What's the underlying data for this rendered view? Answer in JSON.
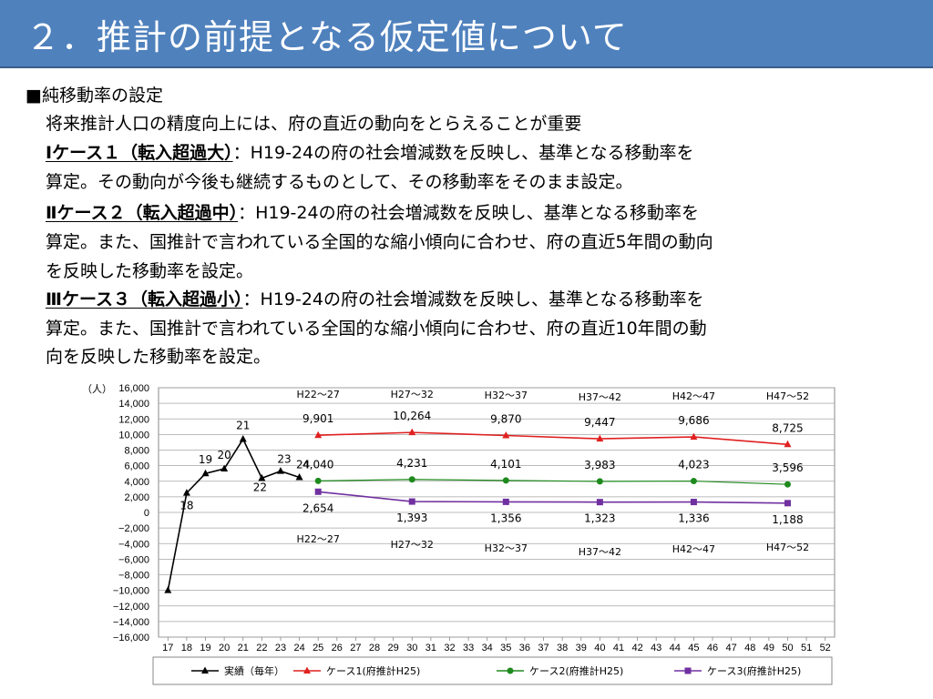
{
  "slide": {
    "title": "２．推計の前提となる仮定値について",
    "heading": "■純移動率の設定",
    "intro": "将来推計人口の精度向上には、府の直近の動向をとらえることが重要",
    "cases": [
      {
        "label": "Ⅰケース１（転入超過大）",
        "lines": [
          "：H19-24の府の社会増減数を反映し、基準となる移動率を",
          "算定。その動向が今後も継続するものとして、その移動率をそのまま設定。"
        ]
      },
      {
        "label": "Ⅱケース２（転入超過中）",
        "lines": [
          "：H19-24の府の社会増減数を反映し、基準となる移動率を",
          "算定。また、国推計で言われている全国的な縮小傾向に合わせ、府の直近5年間の動向",
          "を反映した移動率を設定。"
        ]
      },
      {
        "label": "Ⅲケース３（転入超過小）",
        "lines": [
          "：H19-24の府の社会増減数を反映し、基準となる移動率を",
          "算定。また、国推計で言われている全国的な縮小傾向に合わせ、府の直近10年間の動",
          "向を反映した移動率を設定。"
        ]
      }
    ]
  },
  "chart_data": {
    "type": "line",
    "y_unit_label": "（人）",
    "ylim": [
      -16000,
      16000
    ],
    "y_ticks": [
      16000,
      14000,
      12000,
      10000,
      8000,
      6000,
      4000,
      2000,
      0,
      -2000,
      -4000,
      -6000,
      -8000,
      -10000,
      -12000,
      -14000,
      -16000
    ],
    "y_tick_labels": [
      "16,000",
      "14,000",
      "12,000",
      "10,000",
      "8,000",
      "6,000",
      "4,000",
      "2,000",
      "0",
      "−2,000",
      "−4,000",
      "−6,000",
      "−8,000",
      "−10,000",
      "−12,000",
      "−14,000",
      "−16,000"
    ],
    "x_ticks": [
      17,
      18,
      19,
      20,
      21,
      22,
      23,
      24,
      25,
      26,
      27,
      28,
      29,
      30,
      31,
      32,
      33,
      34,
      35,
      36,
      37,
      38,
      39,
      40,
      41,
      42,
      43,
      44,
      45,
      46,
      47,
      48,
      49,
      50,
      51,
      52
    ],
    "grid": true,
    "legend_position": "bottom",
    "series": [
      {
        "name": "実績（毎年）",
        "color": "#000000",
        "marker": "triangle",
        "points": [
          {
            "x": 17,
            "y": -10000
          },
          {
            "x": 18,
            "y": 2500,
            "label": "18"
          },
          {
            "x": 19,
            "y": 5000,
            "label": "19"
          },
          {
            "x": 20,
            "y": 5600,
            "label": "20"
          },
          {
            "x": 21,
            "y": 9400,
            "label": "21"
          },
          {
            "x": 22,
            "y": 4400,
            "label": "22"
          },
          {
            "x": 23,
            "y": 5300,
            "label": "23"
          },
          {
            "x": 24,
            "y": 4500,
            "label": "24"
          }
        ]
      },
      {
        "name": "ケース1(府推計H25)",
        "color": "#e02020",
        "marker": "triangle",
        "points": [
          {
            "x": 25,
            "y": 9901,
            "label": "9,901"
          },
          {
            "x": 30,
            "y": 10264,
            "label": "10,264"
          },
          {
            "x": 35,
            "y": 9870,
            "label": "9,870"
          },
          {
            "x": 40,
            "y": 9447,
            "label": "9,447"
          },
          {
            "x": 45,
            "y": 9686,
            "label": "9,686"
          },
          {
            "x": 50,
            "y": 8725,
            "label": "8,725"
          }
        ]
      },
      {
        "name": "ケース2(府推計H25)",
        "color": "#1e8a1e",
        "marker": "circle",
        "points": [
          {
            "x": 25,
            "y": 4040,
            "label": "4,040"
          },
          {
            "x": 30,
            "y": 4231,
            "label": "4,231"
          },
          {
            "x": 35,
            "y": 4101,
            "label": "4,101"
          },
          {
            "x": 40,
            "y": 3983,
            "label": "3,983"
          },
          {
            "x": 45,
            "y": 4023,
            "label": "4,023"
          },
          {
            "x": 50,
            "y": 3596,
            "label": "3,596"
          }
        ]
      },
      {
        "name": "ケース3(府推計H25)",
        "color": "#7030a0",
        "marker": "square",
        "points": [
          {
            "x": 25,
            "y": 2654,
            "label": "2,654"
          },
          {
            "x": 30,
            "y": 1393,
            "label": "1,393"
          },
          {
            "x": 35,
            "y": 1356,
            "label": "1,356"
          },
          {
            "x": 40,
            "y": 1323,
            "label": "1,323"
          },
          {
            "x": 45,
            "y": 1336,
            "label": "1,336"
          },
          {
            "x": 50,
            "y": 1188,
            "label": "1,188"
          }
        ]
      }
    ],
    "period_labels_top": [
      {
        "x": 25,
        "text": "H22～27"
      },
      {
        "x": 30,
        "text": "H27～32"
      },
      {
        "x": 35,
        "text": "H32～37"
      },
      {
        "x": 40,
        "text": "H37～42"
      },
      {
        "x": 45,
        "text": "H42～47"
      },
      {
        "x": 50,
        "text": "H47～52"
      }
    ],
    "period_labels_bottom": [
      {
        "x": 25,
        "text": "H22～27"
      },
      {
        "x": 30,
        "text": "H27～32"
      },
      {
        "x": 35,
        "text": "H32～37"
      },
      {
        "x": 40,
        "text": "H37～42"
      },
      {
        "x": 45,
        "text": "H42～47"
      },
      {
        "x": 50,
        "text": "H47～52"
      }
    ]
  }
}
